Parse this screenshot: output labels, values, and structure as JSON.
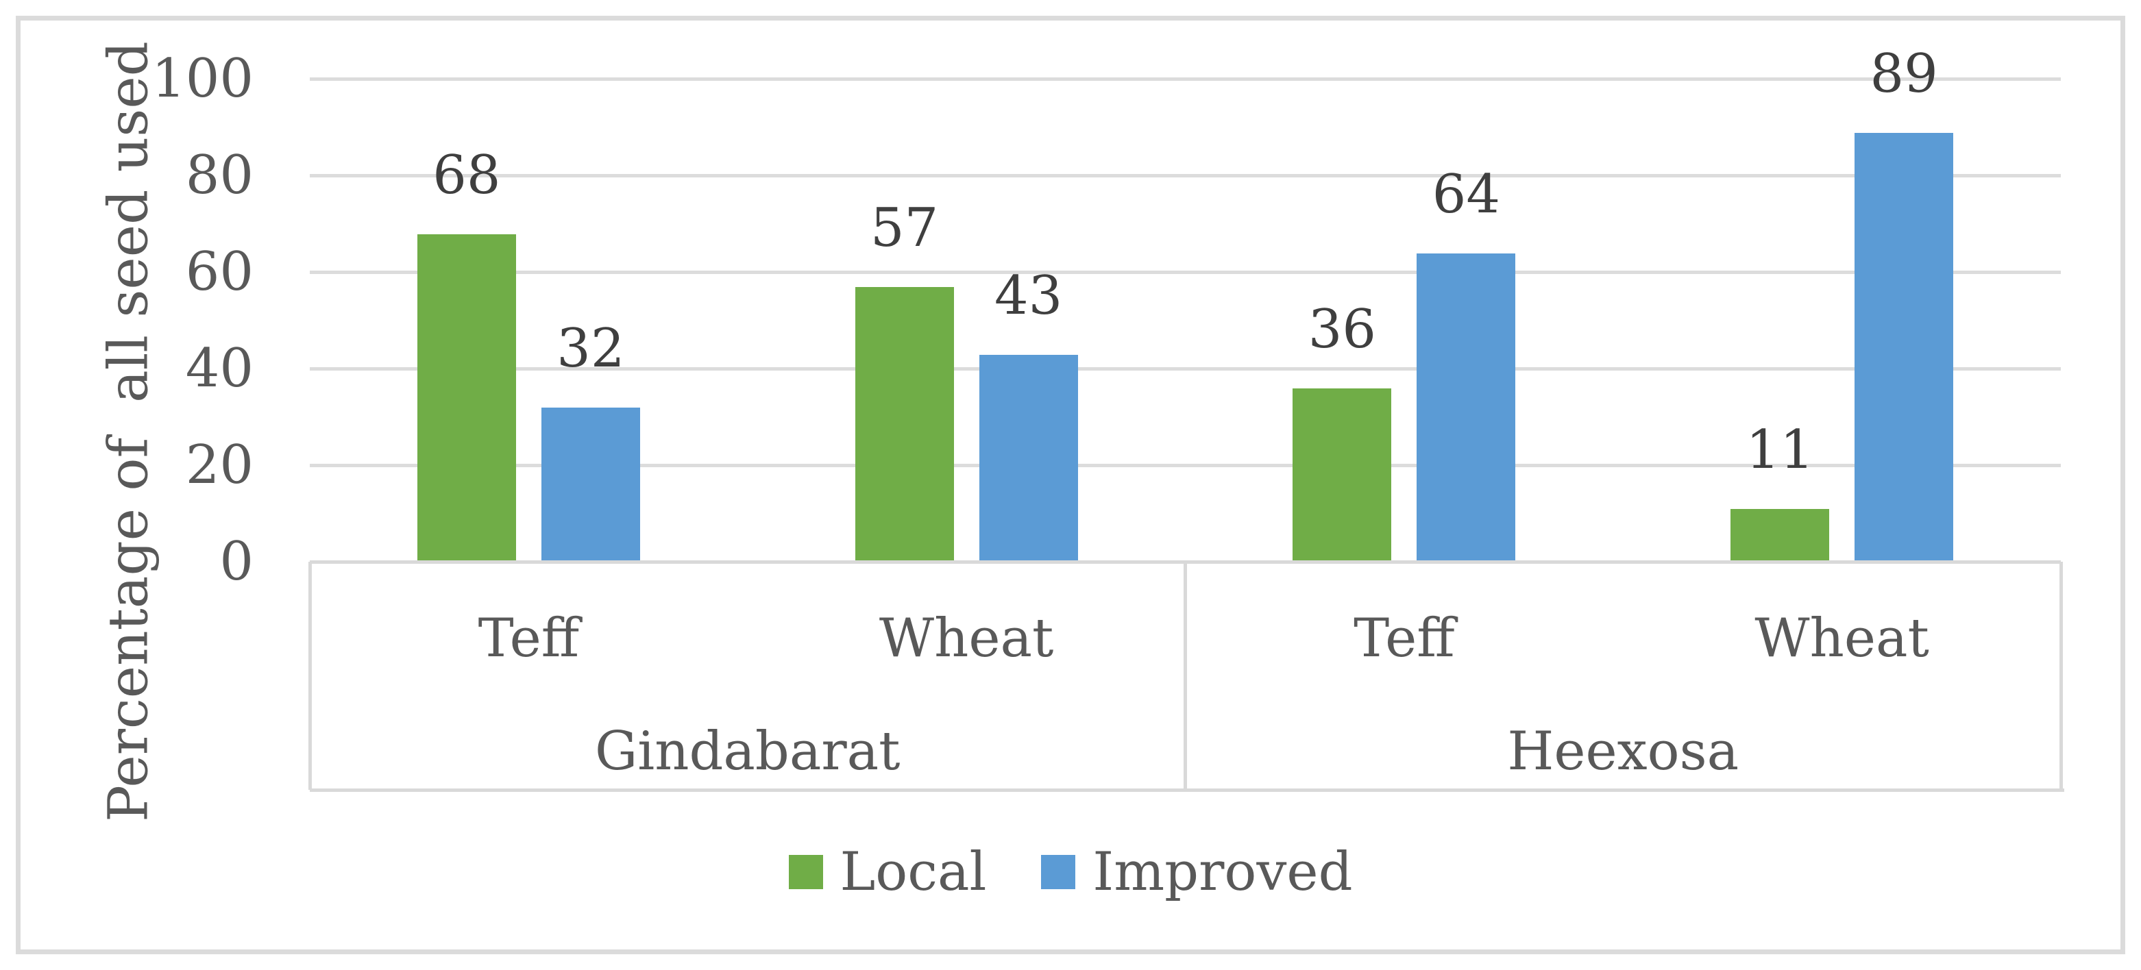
{
  "figure": {
    "background_color": "#FFFFFF",
    "border_color": "#DBDBDB",
    "gridline_color": "#DCDCDC",
    "axis_line_color": "#D9D9D9",
    "axis_text_color": "#595959",
    "data_label_color": "#3F3F3F"
  },
  "chart_data": {
    "type": "bar",
    "title": "",
    "ylabel": "Percentage of  all seed used",
    "xlabel": "",
    "ylim": [
      0,
      100
    ],
    "yticks": [
      100,
      80,
      60,
      40,
      20,
      0
    ],
    "grid": true,
    "legend_position": "bottom-center",
    "categories": [
      "Teff",
      "Wheat",
      "Teff",
      "Wheat"
    ],
    "groups": [
      {
        "label": "Gindabarat",
        "category_indexes": [
          0,
          1
        ]
      },
      {
        "label": "Heexosa",
        "category_indexes": [
          2,
          3
        ]
      }
    ],
    "series": [
      {
        "name": "Local",
        "color": "#70AD47",
        "values": [
          68,
          57,
          36,
          11
        ]
      },
      {
        "name": "Improved",
        "color": "#5B9BD5",
        "values": [
          32,
          43,
          64,
          89
        ]
      }
    ],
    "data_labels_shown": true
  },
  "legend": {
    "items": [
      {
        "label": "Local",
        "color": "#70AD47"
      },
      {
        "label": "Improved",
        "color": "#5B9BD5"
      }
    ]
  }
}
